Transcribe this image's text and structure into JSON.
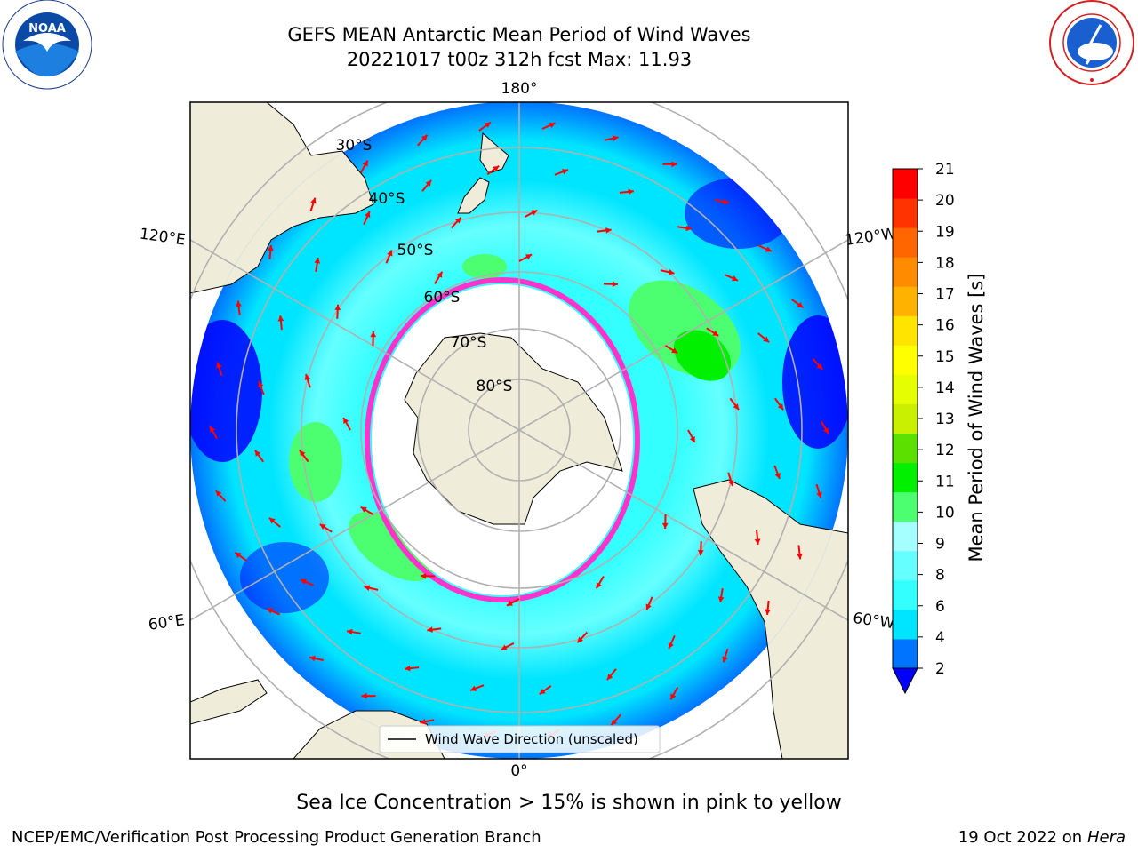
{
  "title": {
    "line1": "GEFS MEAN Antarctic Mean Period of Wind Waves",
    "line2": "20221017 t00z 312h fcst   Max: 11.93"
  },
  "logos": {
    "left": "noaa-logo",
    "right": "national-weather-service-logo"
  },
  "map": {
    "projection": "south-polar-stereographic",
    "meridian_labels": [
      "180°",
      "120°E",
      "120°W",
      "60°E",
      "60°W",
      "0°"
    ],
    "parallel_labels": [
      "30°S",
      "40°S",
      "50°S",
      "60°S",
      "70°S",
      "80°S"
    ],
    "legend_label": "Wind Wave Direction (unscaled)",
    "arrow_color": "#ff0000",
    "land_color": "#efedda",
    "ice_colors": [
      "#ff33cc",
      "#ffb000"
    ],
    "grid_color": "#b0b0b0"
  },
  "colorbar": {
    "label": "Mean Period of Wind Waves [s]",
    "ticks": [
      "2",
      "4",
      "6",
      "8",
      "9",
      "10",
      "11",
      "12",
      "13",
      "14",
      "15",
      "16",
      "17",
      "18",
      "19",
      "20",
      "21"
    ],
    "colors": [
      "#0073ff",
      "#00e5ff",
      "#33ffff",
      "#66ffff",
      "#a6ffff",
      "#4cff70",
      "#00f000",
      "#5ce000",
      "#c8f000",
      "#e6ff00",
      "#ffff00",
      "#ffe400",
      "#ffb300",
      "#ff8c00",
      "#ff6600",
      "#ff3300",
      "#ff0000"
    ],
    "extend_color": "#0000ff"
  },
  "notes": {
    "sea_ice": "Sea Ice Concentration > 15% is shown in pink to yellow"
  },
  "footer": {
    "left": "NCEP/EMC/Verification Post Processing Product Generation Branch",
    "right_date": "19 Oct 2022 on ",
    "right_host": "Hera"
  }
}
